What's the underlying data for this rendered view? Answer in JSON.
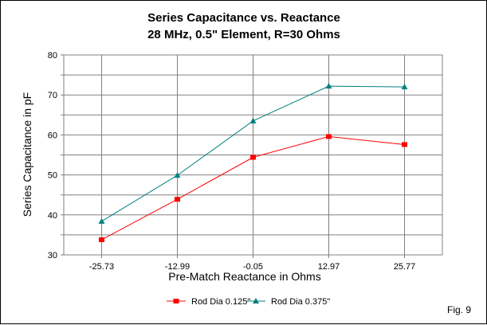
{
  "chart_data": {
    "type": "line",
    "title": "Series Capacitance vs. Reactance",
    "subtitle": "28 MHz, 0.5\" Element, R=30 Ohms",
    "xlabel": "Pre-Match Reactance in Ohms",
    "ylabel": "Series Capacitance in pF",
    "categories": [
      "-25.73",
      "-12.99",
      "-0.05",
      "12.97",
      "25.77"
    ],
    "ylim": [
      30,
      80
    ],
    "yticks": [
      "30",
      "40",
      "50",
      "60",
      "70",
      "80"
    ],
    "grid": true,
    "legend": "bottom",
    "series": [
      {
        "name": "Rod Dia 0.125\"",
        "color": "#ff0000",
        "marker": "square",
        "values": [
          33.8,
          43.9,
          54.4,
          59.6,
          57.6
        ]
      },
      {
        "name": "Rod Dia 0.375\"",
        "color": "#008080",
        "marker": "triangle",
        "values": [
          38.4,
          49.9,
          63.5,
          72.2,
          72.0
        ]
      }
    ],
    "annotation": "Fig. 9"
  }
}
